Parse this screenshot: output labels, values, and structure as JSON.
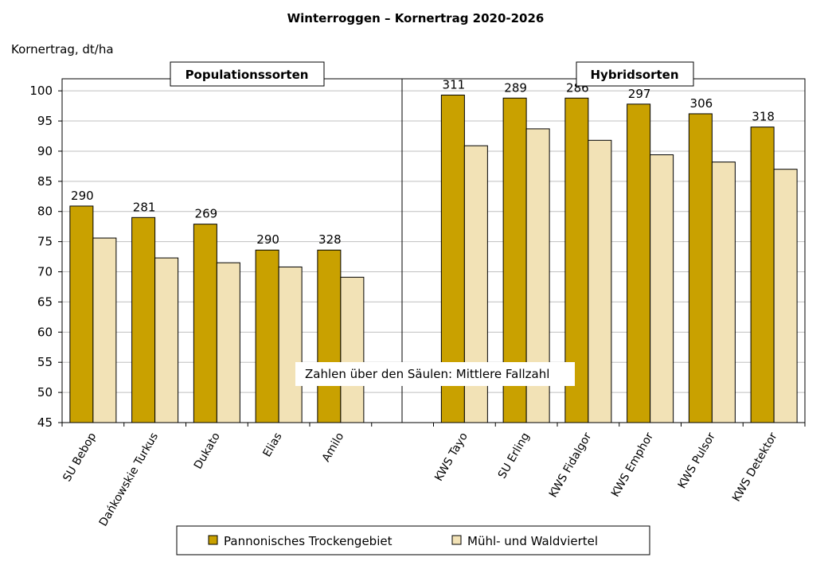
{
  "chart_data": {
    "type": "bar",
    "title": "Winterroggen – Kornertrag 2020-2026",
    "ylabel": "Kornertrag, dt/ha",
    "ylim": [
      45,
      102
    ],
    "yticks": [
      45,
      50,
      55,
      60,
      65,
      70,
      75,
      80,
      85,
      90,
      95,
      100
    ],
    "grid": true,
    "groups": [
      {
        "label": "Populationssorten",
        "categories": [
          "SU Bebop",
          "Dańkowskie Turkus",
          "Dukato",
          "Elias",
          "Amilo"
        ]
      },
      {
        "label": "Hybridsorten",
        "categories": [
          "KWS Tayo",
          "SU Erling",
          "KWS Fidalgor",
          "KWS Emphor",
          "KWS Pulsor",
          "KWS Detektor"
        ]
      }
    ],
    "categories": [
      "SU Bebop",
      "Dańkowskie Turkus",
      "Dukato",
      "Elias",
      "Amilo",
      "",
      "KWS Tayo",
      "SU Erling",
      "KWS Fidalgor",
      "KWS Emphor",
      "KWS Pulsor",
      "KWS Detektor"
    ],
    "series": [
      {
        "name": "Pannonisches Trockengebiet",
        "color": "#C9A100",
        "values": [
          80.9,
          79.0,
          77.9,
          73.6,
          73.6,
          null,
          99.3,
          98.8,
          98.8,
          97.8,
          96.2,
          94.0
        ]
      },
      {
        "name": "Mühl- und Waldviertel",
        "color": "#F2E2B6",
        "values": [
          75.6,
          72.3,
          71.5,
          70.8,
          69.1,
          null,
          90.9,
          93.7,
          91.8,
          89.4,
          88.2,
          87.0
        ]
      }
    ],
    "data_labels": [
      "290",
      "281",
      "269",
      "290",
      "328",
      "",
      "311",
      "289",
      "286",
      "297",
      "306",
      "318"
    ],
    "annotation": "Zahlen über den Säulen: Mittlere Fallzahl",
    "legend_position": "bottom"
  }
}
